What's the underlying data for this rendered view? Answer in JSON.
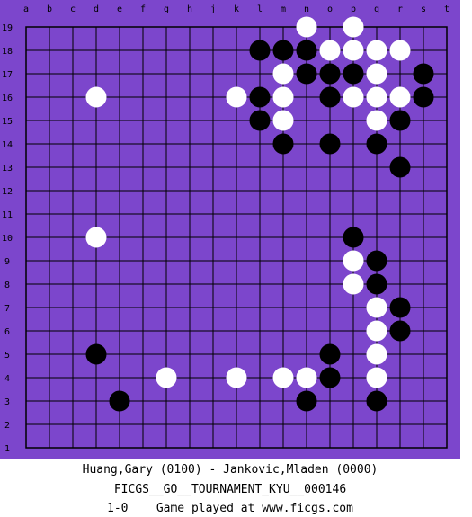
{
  "board": {
    "columns": [
      "a",
      "b",
      "c",
      "d",
      "e",
      "f",
      "g",
      "h",
      "j",
      "k",
      "l",
      "m",
      "n",
      "o",
      "p",
      "q",
      "r",
      "s",
      "t"
    ],
    "rows": [
      19,
      18,
      17,
      16,
      15,
      14,
      13,
      12,
      11,
      10,
      9,
      8,
      7,
      6,
      5,
      4,
      3,
      2,
      1
    ],
    "stones": [
      {
        "col": "n",
        "row": 19,
        "color": "white"
      },
      {
        "col": "p",
        "row": 19,
        "color": "white"
      },
      {
        "col": "l",
        "row": 18,
        "color": "black"
      },
      {
        "col": "m",
        "row": 18,
        "color": "black"
      },
      {
        "col": "n",
        "row": 18,
        "color": "black"
      },
      {
        "col": "o",
        "row": 18,
        "color": "white"
      },
      {
        "col": "p",
        "row": 18,
        "color": "white"
      },
      {
        "col": "q",
        "row": 18,
        "color": "white"
      },
      {
        "col": "r",
        "row": 18,
        "color": "white"
      },
      {
        "col": "m",
        "row": 17,
        "color": "white"
      },
      {
        "col": "n",
        "row": 17,
        "color": "black"
      },
      {
        "col": "o",
        "row": 17,
        "color": "black"
      },
      {
        "col": "p",
        "row": 17,
        "color": "black"
      },
      {
        "col": "q",
        "row": 17,
        "color": "white"
      },
      {
        "col": "s",
        "row": 17,
        "color": "black"
      },
      {
        "col": "d",
        "row": 16,
        "color": "white"
      },
      {
        "col": "k",
        "row": 16,
        "color": "white"
      },
      {
        "col": "l",
        "row": 16,
        "color": "black"
      },
      {
        "col": "m",
        "row": 16,
        "color": "white"
      },
      {
        "col": "o",
        "row": 16,
        "color": "black"
      },
      {
        "col": "p",
        "row": 16,
        "color": "white"
      },
      {
        "col": "q",
        "row": 16,
        "color": "white"
      },
      {
        "col": "r",
        "row": 16,
        "color": "white"
      },
      {
        "col": "s",
        "row": 16,
        "color": "black"
      },
      {
        "col": "l",
        "row": 15,
        "color": "black"
      },
      {
        "col": "m",
        "row": 15,
        "color": "white"
      },
      {
        "col": "q",
        "row": 15,
        "color": "white"
      },
      {
        "col": "r",
        "row": 15,
        "color": "black"
      },
      {
        "col": "m",
        "row": 14,
        "color": "black"
      },
      {
        "col": "o",
        "row": 14,
        "color": "black"
      },
      {
        "col": "q",
        "row": 14,
        "color": "black"
      },
      {
        "col": "r",
        "row": 13,
        "color": "black"
      },
      {
        "col": "d",
        "row": 10,
        "color": "white"
      },
      {
        "col": "p",
        "row": 10,
        "color": "black"
      },
      {
        "col": "p",
        "row": 9,
        "color": "white"
      },
      {
        "col": "q",
        "row": 9,
        "color": "black"
      },
      {
        "col": "p",
        "row": 8,
        "color": "white"
      },
      {
        "col": "q",
        "row": 8,
        "color": "black"
      },
      {
        "col": "q",
        "row": 7,
        "color": "white"
      },
      {
        "col": "r",
        "row": 7,
        "color": "black"
      },
      {
        "col": "q",
        "row": 6,
        "color": "white"
      },
      {
        "col": "r",
        "row": 6,
        "color": "black"
      },
      {
        "col": "d",
        "row": 5,
        "color": "black"
      },
      {
        "col": "o",
        "row": 5,
        "color": "black"
      },
      {
        "col": "q",
        "row": 5,
        "color": "white"
      },
      {
        "col": "g",
        "row": 4,
        "color": "white"
      },
      {
        "col": "k",
        "row": 4,
        "color": "white"
      },
      {
        "col": "m",
        "row": 4,
        "color": "white"
      },
      {
        "col": "n",
        "row": 4,
        "color": "white"
      },
      {
        "col": "o",
        "row": 4,
        "color": "black"
      },
      {
        "col": "q",
        "row": 4,
        "color": "white"
      },
      {
        "col": "e",
        "row": 3,
        "color": "black"
      },
      {
        "col": "n",
        "row": 3,
        "color": "black"
      },
      {
        "col": "q",
        "row": 3,
        "color": "black"
      }
    ]
  },
  "footer": {
    "players": "Huang,Gary (0100) - Jankovic,Mladen (0000)",
    "event": "FICGS__GO__TOURNAMENT_KYU__000146",
    "result": "1-0    Game played at www.ficgs.com"
  }
}
